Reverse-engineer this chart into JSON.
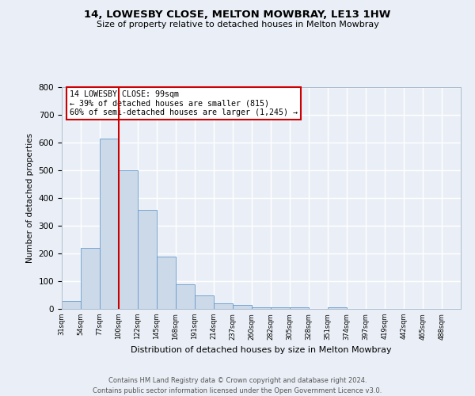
{
  "title": "14, LOWESBY CLOSE, MELTON MOWBRAY, LE13 1HW",
  "subtitle": "Size of property relative to detached houses in Melton Mowbray",
  "xlabel": "Distribution of detached houses by size in Melton Mowbray",
  "ylabel": "Number of detached properties",
  "bin_labels": [
    "31sqm",
    "54sqm",
    "77sqm",
    "100sqm",
    "122sqm",
    "145sqm",
    "168sqm",
    "191sqm",
    "214sqm",
    "237sqm",
    "260sqm",
    "282sqm",
    "305sqm",
    "328sqm",
    "351sqm",
    "374sqm",
    "397sqm",
    "419sqm",
    "442sqm",
    "465sqm",
    "488sqm"
  ],
  "bar_values": [
    30,
    220,
    615,
    500,
    358,
    190,
    88,
    50,
    20,
    13,
    5,
    7,
    5,
    0,
    7,
    0,
    0,
    0,
    0,
    0,
    0
  ],
  "bar_color": "#ccd9e8",
  "bar_edge_color": "#6699cc",
  "background_color": "#eaeff7",
  "grid_color": "#ffffff",
  "ylim": [
    0,
    800
  ],
  "yticks": [
    0,
    100,
    200,
    300,
    400,
    500,
    600,
    700,
    800
  ],
  "property_line_color": "#cc0000",
  "annotation_title": "14 LOWESBY CLOSE: 99sqm",
  "annotation_line1": "← 39% of detached houses are smaller (815)",
  "annotation_line2": "60% of semi-detached houses are larger (1,245) →",
  "annotation_box_color": "#cc0000",
  "footer_line1": "Contains HM Land Registry data © Crown copyright and database right 2024.",
  "footer_line2": "Contains public sector information licensed under the Open Government Licence v3.0."
}
